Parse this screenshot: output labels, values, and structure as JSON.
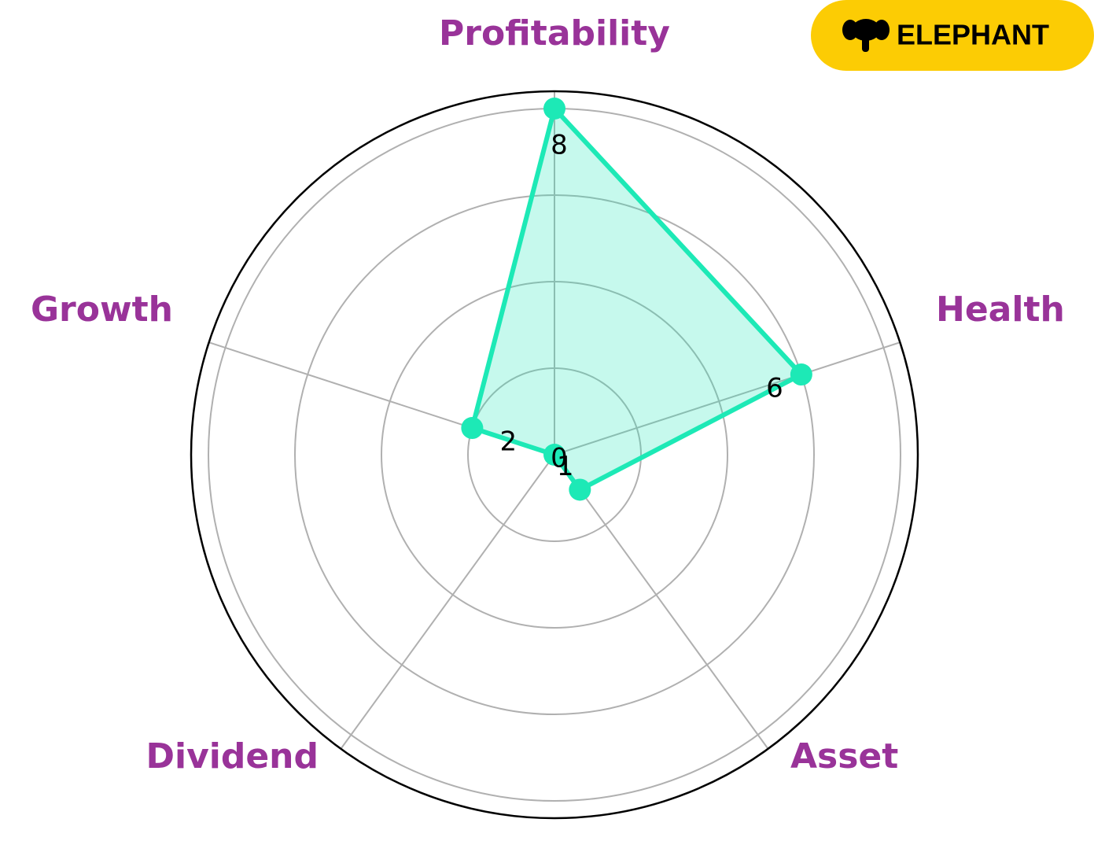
{
  "logo": "ELEPHANT",
  "chart_data": {
    "type": "radar",
    "categories": [
      "Profitability",
      "Health",
      "Asset",
      "Dividend",
      "Growth"
    ],
    "values": [
      8,
      6,
      1,
      0,
      2
    ],
    "color": "#1de9b6",
    "label_color": "#993399",
    "rlim": [
      0,
      8.4
    ],
    "rticks": [
      2,
      4,
      6,
      8
    ],
    "grid": true
  }
}
